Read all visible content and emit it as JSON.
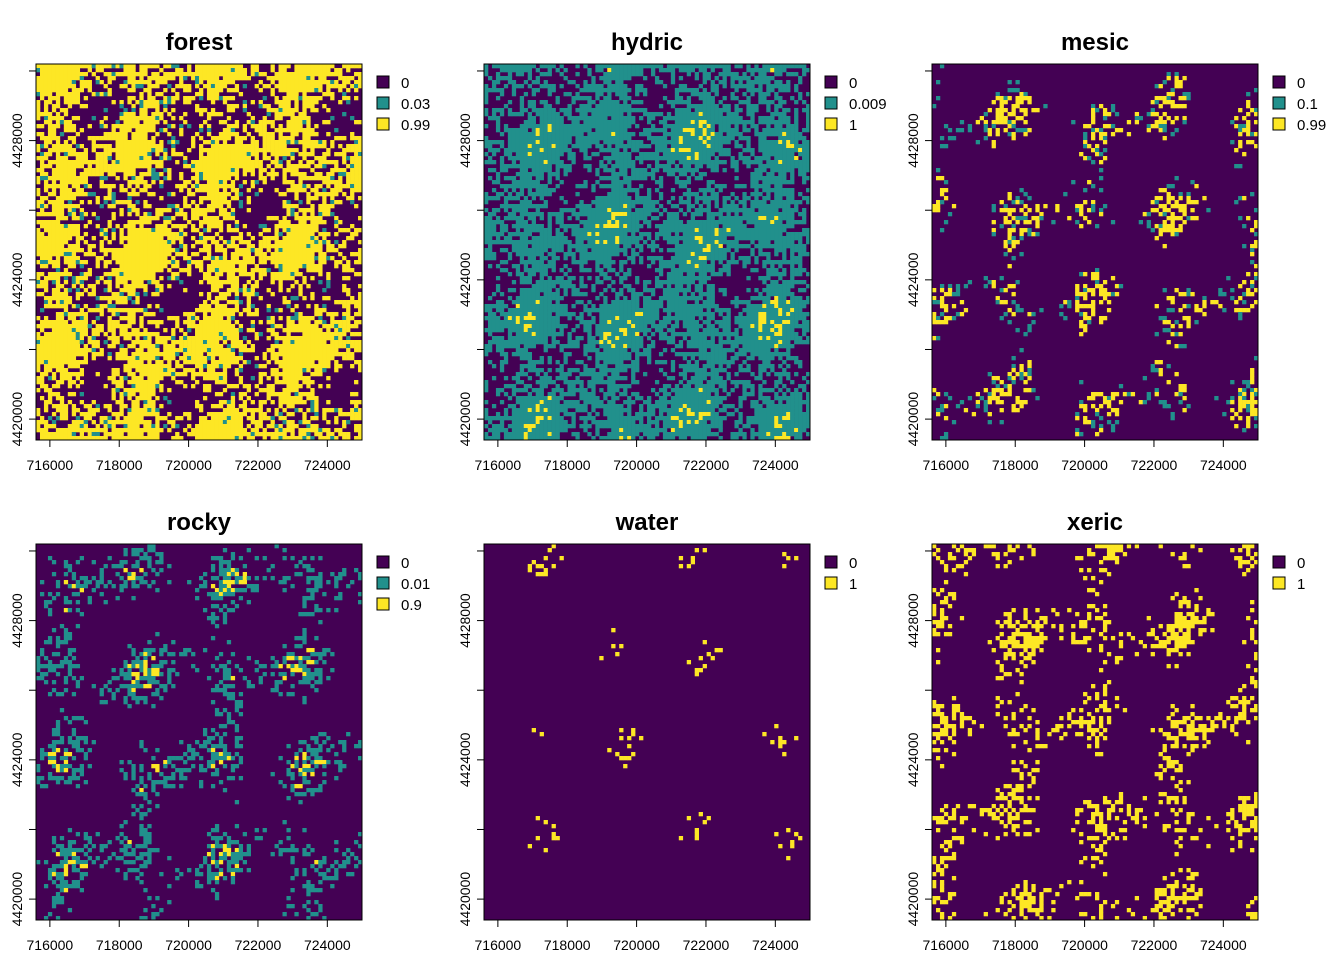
{
  "chart_data": [
    {
      "type": "heatmap",
      "title": "forest",
      "legend": {
        "labels": [
          "0",
          "0.03",
          "0.99"
        ],
        "colors": [
          "#440154",
          "#21908C",
          "#FDE725"
        ]
      },
      "x_ticks": [
        "716000",
        "718000",
        "720000",
        "722000",
        "724000"
      ],
      "y_ticks": [
        "4420000",
        "4424000",
        "4428000"
      ],
      "xlim": [
        715600,
        725000
      ],
      "ylim": [
        4419400,
        4430200
      ],
      "fractions": [
        0.45,
        0.03,
        0.52
      ]
    },
    {
      "type": "heatmap",
      "title": "hydric",
      "legend": {
        "labels": [
          "0",
          "0.009",
          "1"
        ],
        "colors": [
          "#440154",
          "#21908C",
          "#FDE725"
        ]
      },
      "x_ticks": [
        "716000",
        "718000",
        "720000",
        "722000",
        "724000"
      ],
      "y_ticks": [
        "4420000",
        "4424000",
        "4428000"
      ],
      "xlim": [
        715600,
        725000
      ],
      "ylim": [
        4419400,
        4430200
      ],
      "fractions": [
        0.4,
        0.52,
        0.08
      ]
    },
    {
      "type": "heatmap",
      "title": "mesic",
      "legend": {
        "labels": [
          "0",
          "0.1",
          "0.99"
        ],
        "colors": [
          "#440154",
          "#21908C",
          "#FDE725"
        ]
      },
      "x_ticks": [
        "716000",
        "718000",
        "720000",
        "722000",
        "724000"
      ],
      "y_ticks": [
        "4420000",
        "4424000",
        "4428000"
      ],
      "xlim": [
        715600,
        725000
      ],
      "ylim": [
        4419400,
        4430200
      ],
      "fractions": [
        0.78,
        0.05,
        0.17
      ]
    },
    {
      "type": "heatmap",
      "title": "rocky",
      "legend": {
        "labels": [
          "0",
          "0.01",
          "0.9"
        ],
        "colors": [
          "#440154",
          "#21908C",
          "#FDE725"
        ]
      },
      "x_ticks": [
        "716000",
        "718000",
        "720000",
        "722000",
        "724000"
      ],
      "y_ticks": [
        "4420000",
        "4424000",
        "4428000"
      ],
      "xlim": [
        715600,
        725000
      ],
      "ylim": [
        4419400,
        4430200
      ],
      "fractions": [
        0.72,
        0.23,
        0.05
      ]
    },
    {
      "type": "heatmap",
      "title": "water",
      "legend": {
        "labels": [
          "0",
          "1"
        ],
        "colors": [
          "#440154",
          "#FDE725"
        ]
      },
      "x_ticks": [
        "716000",
        "718000",
        "720000",
        "722000",
        "724000"
      ],
      "y_ticks": [
        "4420000",
        "4424000",
        "4428000"
      ],
      "xlim": [
        715600,
        725000
      ],
      "ylim": [
        4419400,
        4430200
      ],
      "fractions": [
        0.98,
        0.02
      ]
    },
    {
      "type": "heatmap",
      "title": "xeric",
      "legend": {
        "labels": [
          "0",
          "1"
        ],
        "colors": [
          "#440154",
          "#FDE725"
        ]
      },
      "x_ticks": [
        "716000",
        "718000",
        "720000",
        "722000",
        "724000"
      ],
      "y_ticks": [
        "4420000",
        "4424000",
        "4428000"
      ],
      "xlim": [
        715600,
        725000
      ],
      "ylim": [
        4419400,
        4430200
      ],
      "fractions": [
        0.75,
        0.25
      ]
    }
  ]
}
